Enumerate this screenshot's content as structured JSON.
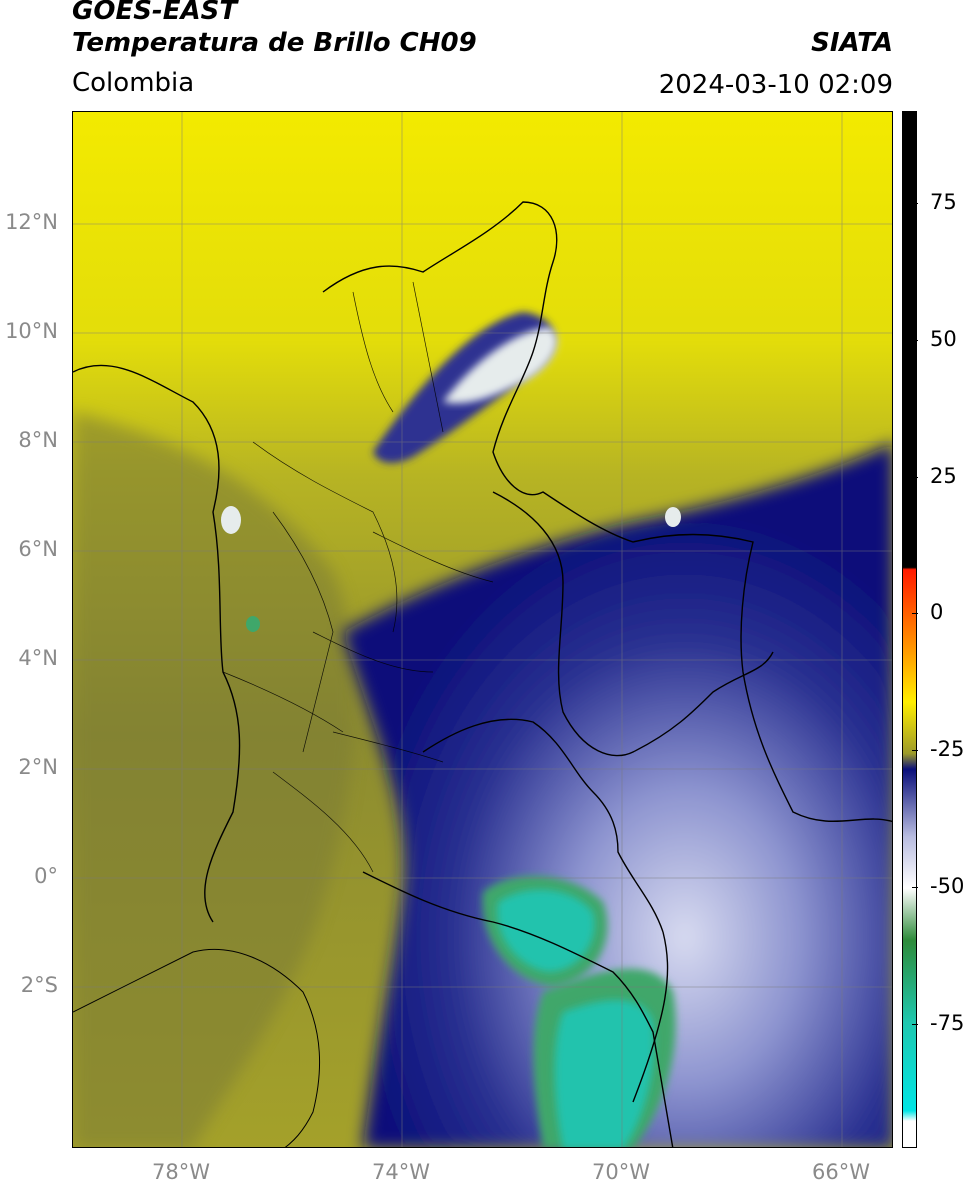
{
  "header": {
    "title_line1": "GOES-EAST",
    "title_line2": "Temperatura de Brillo CH09",
    "region": "Colombia",
    "brand": "SIATA",
    "timestamp": "2024-03-10 02:09"
  },
  "map": {
    "lat_ticks": [
      "12°N",
      "10°N",
      "8°N",
      "6°N",
      "4°N",
      "2°N",
      "0°",
      "2°S"
    ],
    "lon_ticks": [
      "78°W",
      "74°W",
      "70°W",
      "66°W"
    ]
  },
  "colorbar": {
    "ticks": [
      "75",
      "50",
      "25",
      "0",
      "-25",
      "-50",
      "-75"
    ],
    "colors": {
      "black": "#000000",
      "red": "#ff1a00",
      "orange": "#ff9900",
      "yellow": "#ffee00",
      "olive": "#9c9a2a",
      "navy": "#0a0f7a",
      "lavender": "#b8bce0",
      "white": "#ffffff",
      "green": "#2e8b3a",
      "teal": "#1fc8b0",
      "cyan": "#00e5e5"
    }
  }
}
